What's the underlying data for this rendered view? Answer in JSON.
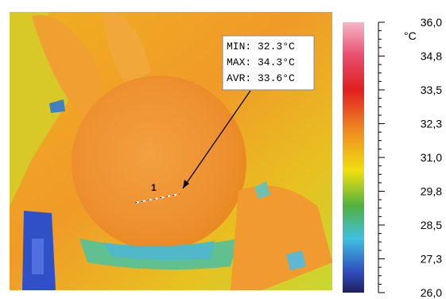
{
  "annotation": {
    "lines": [
      "MIN: 32.3°C",
      "MAX: 34.3°C",
      "AVR: 33.6°C"
    ],
    "marker": "1"
  },
  "scale": {
    "unit": "°C",
    "labels": [
      "36,0",
      "34,8",
      "33,5",
      "32,3",
      "31,0",
      "29,8",
      "28,5",
      "27,3",
      "26,0"
    ]
  }
}
